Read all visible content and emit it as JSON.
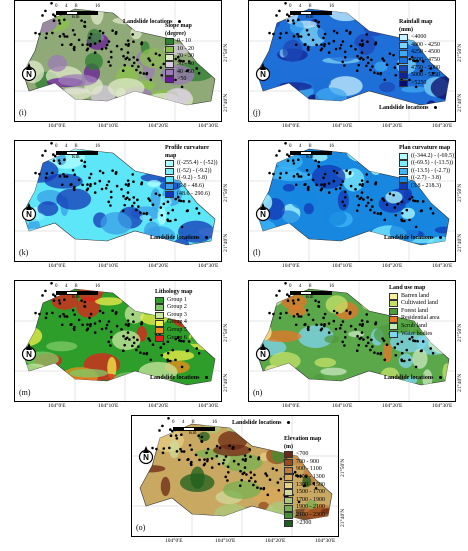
{
  "map_data": {
    "landslide_label": "Landslide locations",
    "scale": {
      "ticks": [
        "0",
        "4",
        "8",
        "16"
      ],
      "unit": "Km"
    },
    "north_symbol": "N",
    "x_ticks": [
      "104°0'E",
      "104°10'E",
      "104°20'E",
      "104°30'E"
    ],
    "y_ticks": [
      "21°50'N",
      "21°40'N"
    ],
    "panels": [
      {
        "id": "i",
        "label": "(i)",
        "legend_title": "Slope map\n(degree)",
        "fill": "#8faa76",
        "legend": [
          {
            "label": "0 - 10",
            "color": "#2e7d32"
          },
          {
            "label": "10 - 20",
            "color": "#8bc34a"
          },
          {
            "label": "20 - 30",
            "color": "#dfe8c9"
          },
          {
            "label": "30 - 40",
            "color": "#d7cbe0"
          },
          {
            "label": "40 - 50",
            "color": "#9c7bb8"
          },
          {
            "label": ">50",
            "color": "#6a1b9a"
          }
        ]
      },
      {
        "id": "j",
        "label": "(j)",
        "legend_title": "Rainfall map\n(mm)",
        "fill": "#1e6fd8",
        "legend": [
          {
            "label": "<4000",
            "color": "#c9f0ff"
          },
          {
            "label": "4000 - 4250",
            "color": "#7dd3f5"
          },
          {
            "label": "4250 - 4500",
            "color": "#3fa9f0"
          },
          {
            "label": "4500 - 4750",
            "color": "#1e6fd8"
          },
          {
            "label": "4750 - 5000",
            "color": "#1d47b8"
          },
          {
            "label": "5000 - 5250",
            "color": "#16238f"
          },
          {
            "label": ">5250",
            "color": "#0b0a66"
          }
        ]
      },
      {
        "id": "k",
        "label": "(k)",
        "legend_title": "Profile curvature map",
        "fill": "#5de6f7",
        "legend": [
          {
            "label": "((-255.4) - (-52))",
            "color": "#b2ffff"
          },
          {
            "label": "((-52) - (-9.2))",
            "color": "#7eeeff"
          },
          {
            "label": "((-9.2) - 5.8)",
            "color": "#5de6f7"
          },
          {
            "label": "(5.8 - 48.6)",
            "color": "#3a9ee6"
          },
          {
            "label": "(48.6 - 290.6)",
            "color": "#1337b5"
          }
        ]
      },
      {
        "id": "l",
        "label": "(l)",
        "legend_title": "Plan curvature map",
        "fill": "#1787e0",
        "legend": [
          {
            "label": "((-344.2) - (-69.5))",
            "color": "#b2ffff"
          },
          {
            "label": "((-69.5) - (-13.5))",
            "color": "#7eeeff"
          },
          {
            "label": "((-13.5) - (-2.7))",
            "color": "#3fb5f5"
          },
          {
            "label": "((-2.7) - 3.8)",
            "color": "#1787e0"
          },
          {
            "label": "(3.8 - 218.3)",
            "color": "#1337b5"
          }
        ]
      },
      {
        "id": "m",
        "label": "(m)",
        "legend_title": "Lithology map",
        "fill": "#2e9e2b",
        "legend": [
          {
            "label": "Group 1",
            "color": "#2e9e2b"
          },
          {
            "label": "Group 2",
            "color": "#7fc96a"
          },
          {
            "label": "Group 3",
            "color": "#c9e6a0"
          },
          {
            "label": "Group 4",
            "color": "#f2ef4a"
          },
          {
            "label": "Group 5",
            "color": "#f28c1c"
          },
          {
            "label": "Group 6",
            "color": "#e0201c"
          }
        ]
      },
      {
        "id": "n",
        "label": "(n)",
        "legend_title": "Land use map",
        "fill": "#5aa84a",
        "legend": [
          {
            "label": "Barren land",
            "color": "#f6f0a0"
          },
          {
            "label": "Cultivated land",
            "color": "#c6e16a"
          },
          {
            "label": "Forest land",
            "color": "#4f9a3c"
          },
          {
            "label": "Residential area",
            "color": "#e8752a"
          },
          {
            "label": "Scrub land",
            "color": "#c9e8c0"
          },
          {
            "label": "Water bodies",
            "color": "#7fd6f2"
          }
        ]
      },
      {
        "id": "o",
        "label": "(o)",
        "legend_title": "Elevation map\n(m)",
        "fill": "#c9a862",
        "legend": [
          {
            "label": "<700",
            "color": "#6b2a14"
          },
          {
            "label": "700 - 900",
            "color": "#9a4a1c"
          },
          {
            "label": "900 - 1100",
            "color": "#c07a3a"
          },
          {
            "label": "1100 - 1300",
            "color": "#d9a85a"
          },
          {
            "label": "1300 - 1500",
            "color": "#e6cf86"
          },
          {
            "label": "1500 - 1700",
            "color": "#cfd99a"
          },
          {
            "label": "1700 - 1900",
            "color": "#a9c97a"
          },
          {
            "label": "1900 - 2100",
            "color": "#77b050"
          },
          {
            "label": "2100 - 2300",
            "color": "#3f8f33"
          },
          {
            "label": ">2300",
            "color": "#1d5f1e"
          }
        ]
      }
    ]
  }
}
